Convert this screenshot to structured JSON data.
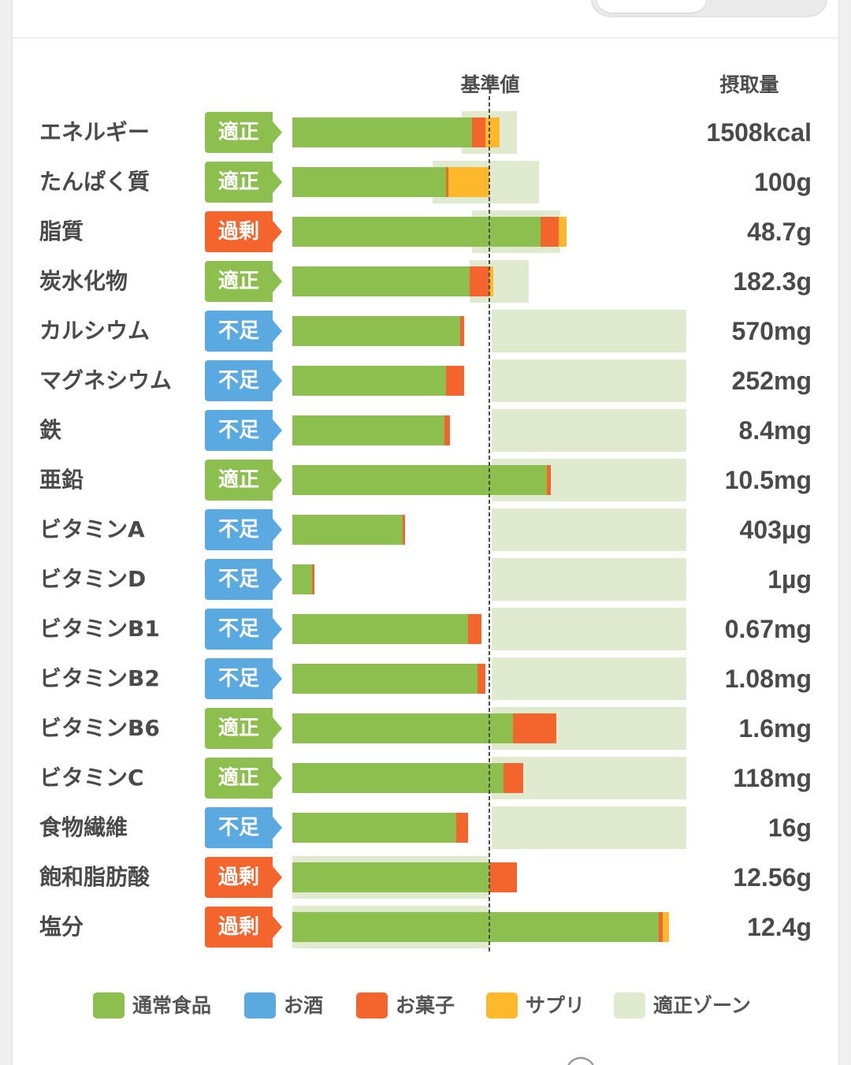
{
  "chart_data": {
    "type": "bar",
    "orientation": "horizontal",
    "stacked": true,
    "reference_label": "基準値",
    "reference_value": 100,
    "intake_label": "摂取量",
    "xlim": [
      0,
      200
    ],
    "categories": [
      "エネルギー",
      "たんぱく質",
      "脂質",
      "炭水化物",
      "カルシウム",
      "マグネシウム",
      "鉄",
      "亜鉛",
      "ビタミンA",
      "ビタミンD",
      "ビタミンB1",
      "ビタミンB2",
      "ビタミンB6",
      "ビタミンC",
      "食物繊維",
      "飽和脂肪酸",
      "塩分"
    ],
    "series": [
      {
        "name": "通常食品",
        "color": "#8cbf4d",
        "values": [
          91,
          78,
          126,
          90,
          85,
          78,
          77,
          129,
          56,
          10,
          89,
          94,
          112,
          107,
          83,
          100,
          186
        ]
      },
      {
        "name": "お酒",
        "color": "#5aa9e0",
        "values": [
          0,
          0,
          0,
          0,
          0,
          0,
          0,
          0,
          0,
          0,
          0,
          0,
          0,
          0,
          0,
          0,
          0
        ]
      },
      {
        "name": "お菓子",
        "color": "#f4642d",
        "values": [
          7,
          1,
          9,
          10,
          2,
          9,
          3,
          2,
          1,
          1,
          7,
          4,
          22,
          10,
          6,
          14,
          2
        ]
      },
      {
        "name": "サプリ",
        "color": "#fdb92b",
        "values": [
          7,
          21,
          4,
          2,
          0,
          0,
          0,
          0,
          0,
          0,
          0,
          0,
          0,
          0,
          0,
          0,
          3
        ]
      }
    ],
    "appropriate_zone": {
      "name": "適正ゾーン",
      "color": "#dfeacf",
      "ranges": [
        [
          86,
          114
        ],
        [
          71,
          125
        ],
        [
          91,
          136
        ],
        [
          90,
          120
        ],
        [
          101,
          200
        ],
        [
          101,
          200
        ],
        [
          101,
          200
        ],
        [
          101,
          200
        ],
        [
          101,
          200
        ],
        [
          101,
          200
        ],
        [
          101,
          200
        ],
        [
          101,
          200
        ],
        [
          101,
          200
        ],
        [
          101,
          200
        ],
        [
          101,
          200
        ],
        [
          0,
          100
        ],
        [
          0,
          100
        ]
      ]
    },
    "status": [
      "適正",
      "適正",
      "過剰",
      "適正",
      "不足",
      "不足",
      "不足",
      "適正",
      "不足",
      "不足",
      "不足",
      "不足",
      "適正",
      "適正",
      "不足",
      "過剰",
      "過剰"
    ],
    "status_colors": {
      "適正": "#8cbf4d",
      "過剰": "#f4642d",
      "不足": "#5aa9e0"
    },
    "intake": [
      "1508kcal",
      "100g",
      "48.7g",
      "182.3g",
      "570mg",
      "252mg",
      "8.4mg",
      "10.5mg",
      "403µg",
      "1µg",
      "0.67mg",
      "1.08mg",
      "1.6mg",
      "118mg",
      "16g",
      "12.56g",
      "12.4g"
    ]
  }
}
